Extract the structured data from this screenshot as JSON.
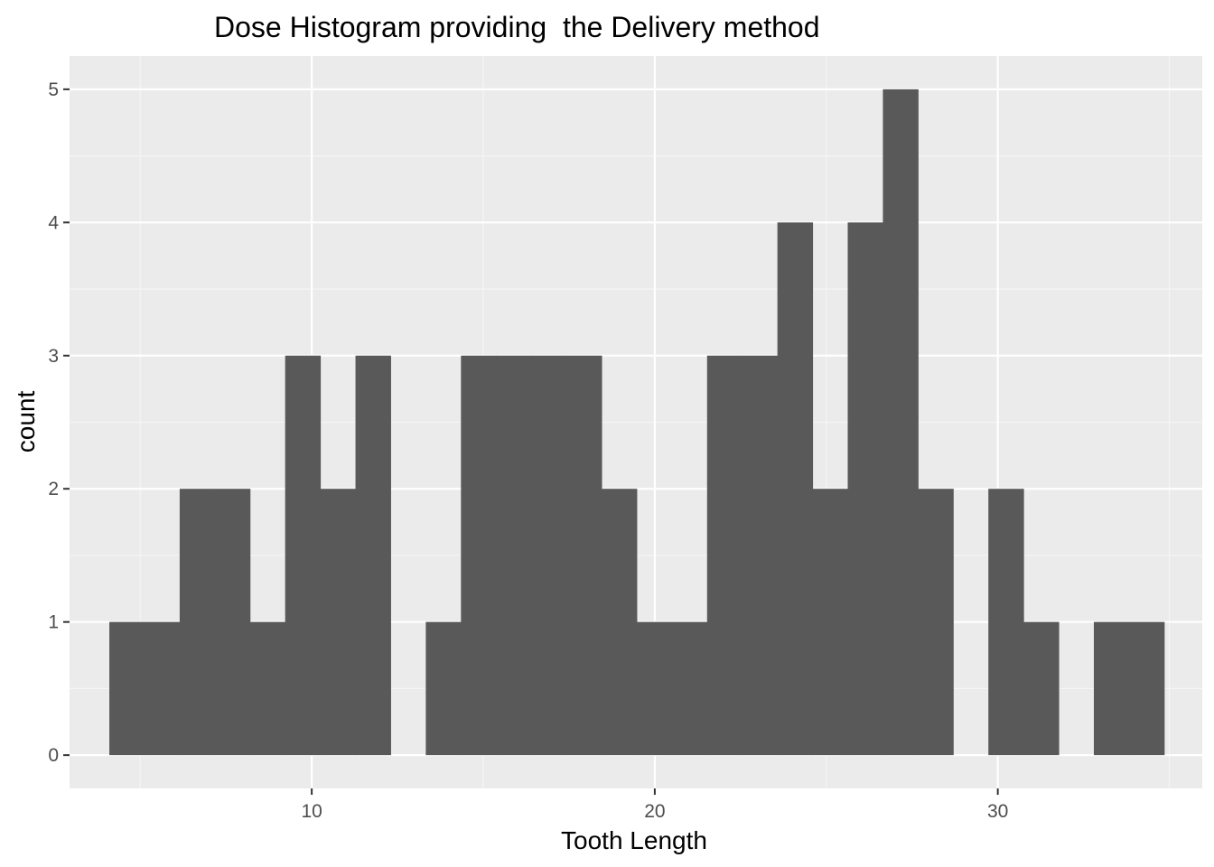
{
  "chart_data": {
    "type": "bar",
    "title": "Dose Histogram providing  the Delivery method",
    "xlabel": "Tooth Length",
    "ylabel": "count",
    "xlim": [
      2.94,
      35.96
    ],
    "ylim": [
      -0.25,
      5.25
    ],
    "x_ticks": [
      10,
      20,
      30
    ],
    "y_ticks": [
      0,
      1,
      2,
      3,
      4,
      5
    ],
    "bin_width": 1.025,
    "bins": [
      {
        "x0": 4.1,
        "x1": 5.125,
        "count": 1
      },
      {
        "x0": 5.125,
        "x1": 6.15,
        "count": 1
      },
      {
        "x0": 6.15,
        "x1": 7.175,
        "count": 2
      },
      {
        "x0": 7.175,
        "x1": 8.2,
        "count": 2
      },
      {
        "x0": 8.2,
        "x1": 9.225,
        "count": 1
      },
      {
        "x0": 9.225,
        "x1": 10.25,
        "count": 3
      },
      {
        "x0": 10.25,
        "x1": 11.275,
        "count": 2
      },
      {
        "x0": 11.275,
        "x1": 12.3,
        "count": 3
      },
      {
        "x0": 13.325,
        "x1": 14.35,
        "count": 1
      },
      {
        "x0": 14.35,
        "x1": 15.375,
        "count": 3
      },
      {
        "x0": 15.375,
        "x1": 16.4,
        "count": 3
      },
      {
        "x0": 16.4,
        "x1": 17.425,
        "count": 3
      },
      {
        "x0": 17.425,
        "x1": 18.45,
        "count": 3
      },
      {
        "x0": 18.45,
        "x1": 19.475,
        "count": 2
      },
      {
        "x0": 19.475,
        "x1": 20.5,
        "count": 1
      },
      {
        "x0": 20.5,
        "x1": 21.525,
        "count": 1
      },
      {
        "x0": 21.525,
        "x1": 22.55,
        "count": 3
      },
      {
        "x0": 22.55,
        "x1": 23.575,
        "count": 3
      },
      {
        "x0": 23.575,
        "x1": 24.6,
        "count": 4
      },
      {
        "x0": 24.6,
        "x1": 25.625,
        "count": 2
      },
      {
        "x0": 25.625,
        "x1": 26.65,
        "count": 4
      },
      {
        "x0": 26.65,
        "x1": 27.675,
        "count": 5
      },
      {
        "x0": 27.675,
        "x1": 28.7,
        "count": 2
      },
      {
        "x0": 29.725,
        "x1": 30.75,
        "count": 2
      },
      {
        "x0": 30.75,
        "x1": 31.775,
        "count": 1
      },
      {
        "x0": 32.8,
        "x1": 33.825,
        "count": 1
      },
      {
        "x0": 33.825,
        "x1": 34.85,
        "count": 1
      }
    ],
    "grid": true,
    "legend": "none",
    "colors": {
      "bar": "#595959",
      "panel_background": "#ebebeb",
      "grid_major": "#ffffff",
      "grid_minor": "#f5f5f5",
      "tick_label": "#4d4d4d",
      "tick_mark": "#333333"
    }
  }
}
